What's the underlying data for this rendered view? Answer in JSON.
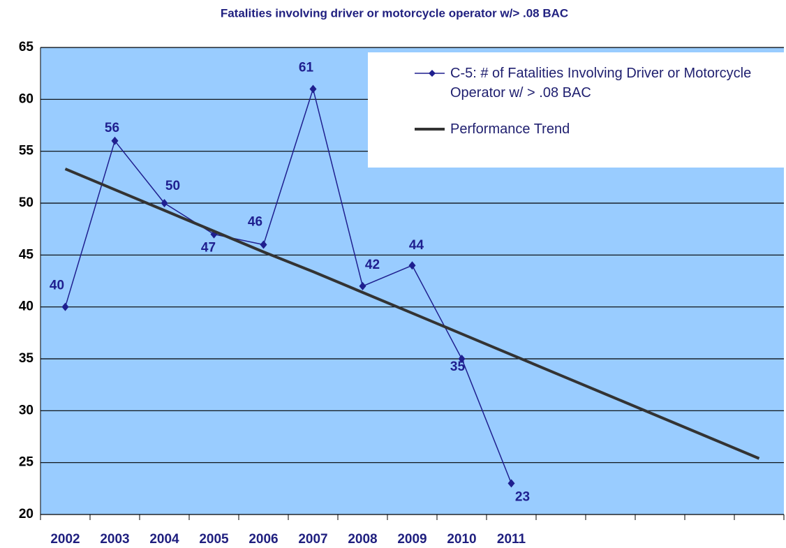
{
  "chart_data": {
    "type": "line",
    "title": "Fatalities involving driver or motorcycle operator w/> .08 BAC",
    "categories": [
      "2002",
      "2003",
      "2004",
      "2005",
      "2006",
      "2007",
      "2008",
      "2009",
      "2010",
      "2011",
      null,
      null,
      null,
      null,
      null
    ],
    "series": [
      {
        "name": "C-5: # of Fatalities Involving Driver or Motorcycle Operator w/ > .08 BAC",
        "color": "#1f1f8f",
        "values": [
          40,
          56,
          50,
          47,
          46,
          61,
          42,
          44,
          35,
          23,
          null,
          null,
          null,
          null,
          null
        ]
      },
      {
        "name": "Performance Trend",
        "color": "#333333",
        "values": [
          53.3,
          51.3,
          49.3,
          47.3,
          45.3,
          43.4,
          41.4,
          39.4,
          37.4,
          35.4,
          33.4,
          31.4,
          29.4,
          27.4,
          25.4
        ]
      }
    ],
    "ylim": [
      20,
      65
    ],
    "yticks": [
      20,
      25,
      30,
      35,
      40,
      45,
      50,
      55,
      60,
      65
    ],
    "grid": true,
    "legend": "top-right"
  }
}
